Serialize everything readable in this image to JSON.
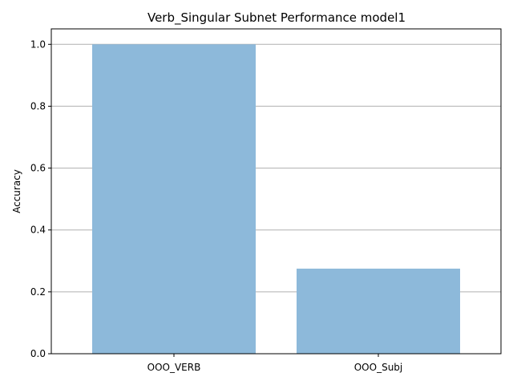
{
  "chart_data": {
    "type": "bar",
    "title": "Verb_Singular Subnet Performance model1",
    "xlabel": "",
    "ylabel": "Accuracy",
    "categories": [
      "OOO_VERB",
      "OOO_Subj"
    ],
    "values": [
      1.0,
      0.275
    ],
    "ylim": [
      0,
      1.05
    ],
    "yticks": [
      0.0,
      0.2,
      0.4,
      0.6,
      0.8,
      1.0
    ],
    "ytick_labels": [
      "0.0",
      "0.2",
      "0.4",
      "0.6",
      "0.8",
      "1.0"
    ],
    "grid": "horizontal",
    "bar_color": "#8db9da"
  }
}
